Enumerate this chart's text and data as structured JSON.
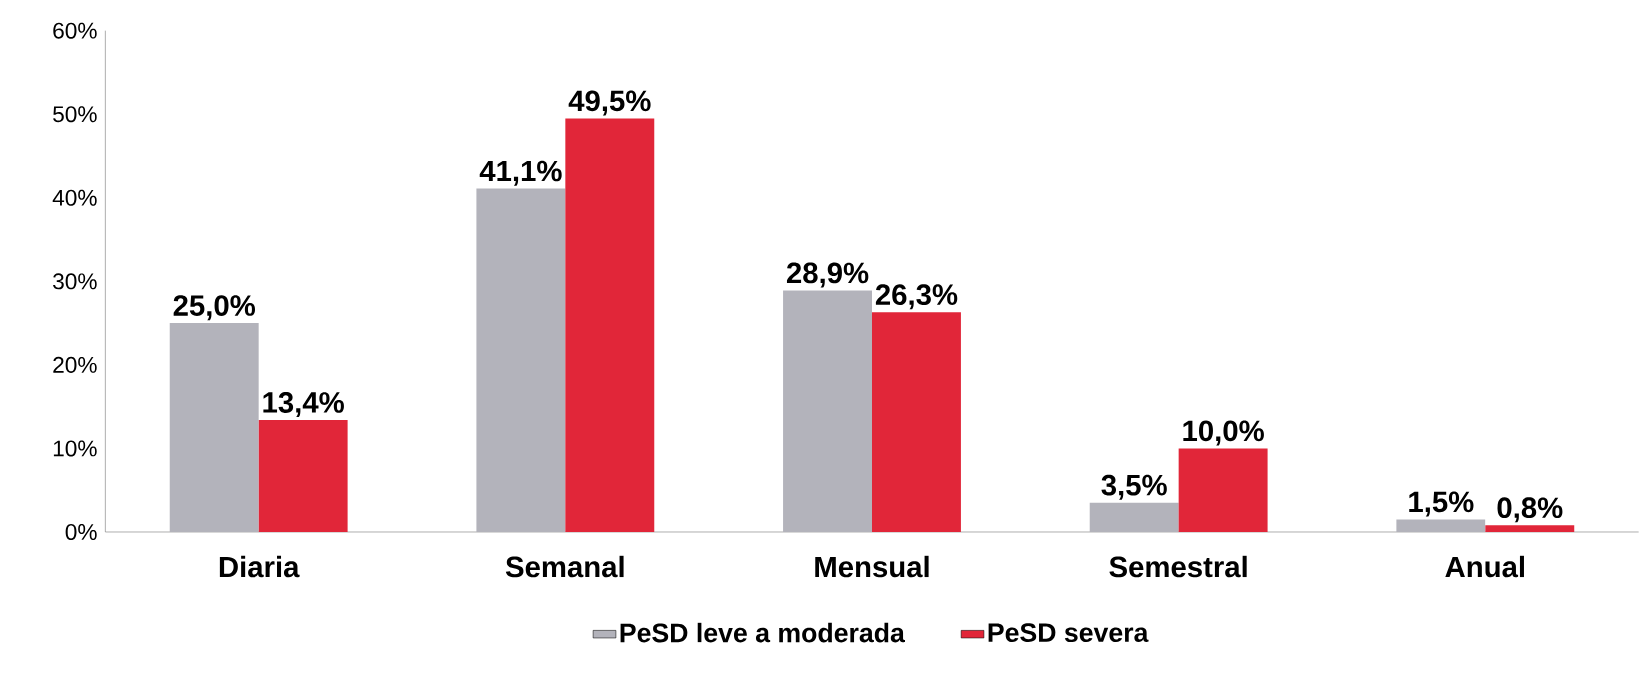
{
  "chart_data": {
    "type": "bar",
    "categories": [
      "Diaria",
      "Semanal",
      "Mensual",
      "Semestral",
      "Anual"
    ],
    "series": [
      {
        "name": "PeSD leve a moderada",
        "color": "#b3b3bb",
        "values": [
          25.0,
          41.1,
          28.9,
          3.5,
          1.5
        ],
        "value_labels": [
          "25,0%",
          "41,1%",
          "28,9%",
          "3,5%",
          "1,5%"
        ]
      },
      {
        "name": "PeSD severa",
        "color": "#e12639",
        "values": [
          13.4,
          49.5,
          26.3,
          10.0,
          0.8
        ],
        "value_labels": [
          "13,4%",
          "49,5%",
          "26,3%",
          "10,0%",
          "0,8%"
        ]
      }
    ],
    "ylim": [
      0,
      60
    ],
    "yticks": [
      {
        "value": 0,
        "label": "0%"
      },
      {
        "value": 10,
        "label": "10%"
      },
      {
        "value": 20,
        "label": "20%"
      },
      {
        "value": 30,
        "label": "30%"
      },
      {
        "value": 40,
        "label": "40%"
      },
      {
        "value": 50,
        "label": "50%"
      },
      {
        "value": 60,
        "label": "60%"
      }
    ],
    "grid": false,
    "legend": "bottom"
  }
}
